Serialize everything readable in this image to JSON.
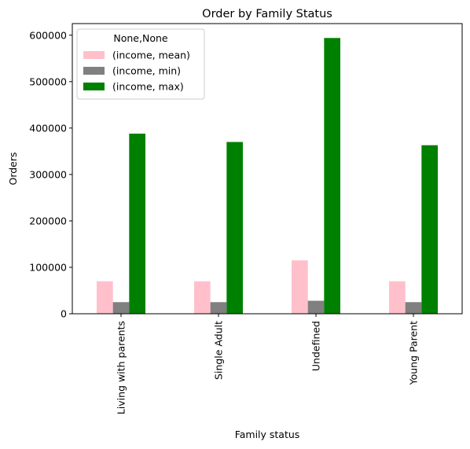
{
  "chart_data": {
    "type": "bar",
    "title": "Order by Family Status",
    "xlabel": "Family status",
    "ylabel": "Orders",
    "categories": [
      "Living with parents",
      "Single Adult",
      "Undefined",
      "Young Parent"
    ],
    "ylim": [
      0,
      625000
    ],
    "yticks": [
      0,
      100000,
      200000,
      300000,
      400000,
      500000,
      600000
    ],
    "ytick_labels": [
      "0",
      "100000",
      "200000",
      "300000",
      "400000",
      "500000",
      "600000"
    ],
    "legend_title": "None,None",
    "legend_position": "top-left",
    "grid": false,
    "series": [
      {
        "name": "(income, mean)",
        "color": "#ffc0cb",
        "values": [
          70000,
          70000,
          115000,
          70000
        ]
      },
      {
        "name": "(income, min)",
        "color": "#808080",
        "values": [
          25000,
          25000,
          28000,
          25000
        ]
      },
      {
        "name": "(income, max)",
        "color": "#008000",
        "values": [
          388000,
          370000,
          594000,
          363000
        ]
      }
    ]
  }
}
